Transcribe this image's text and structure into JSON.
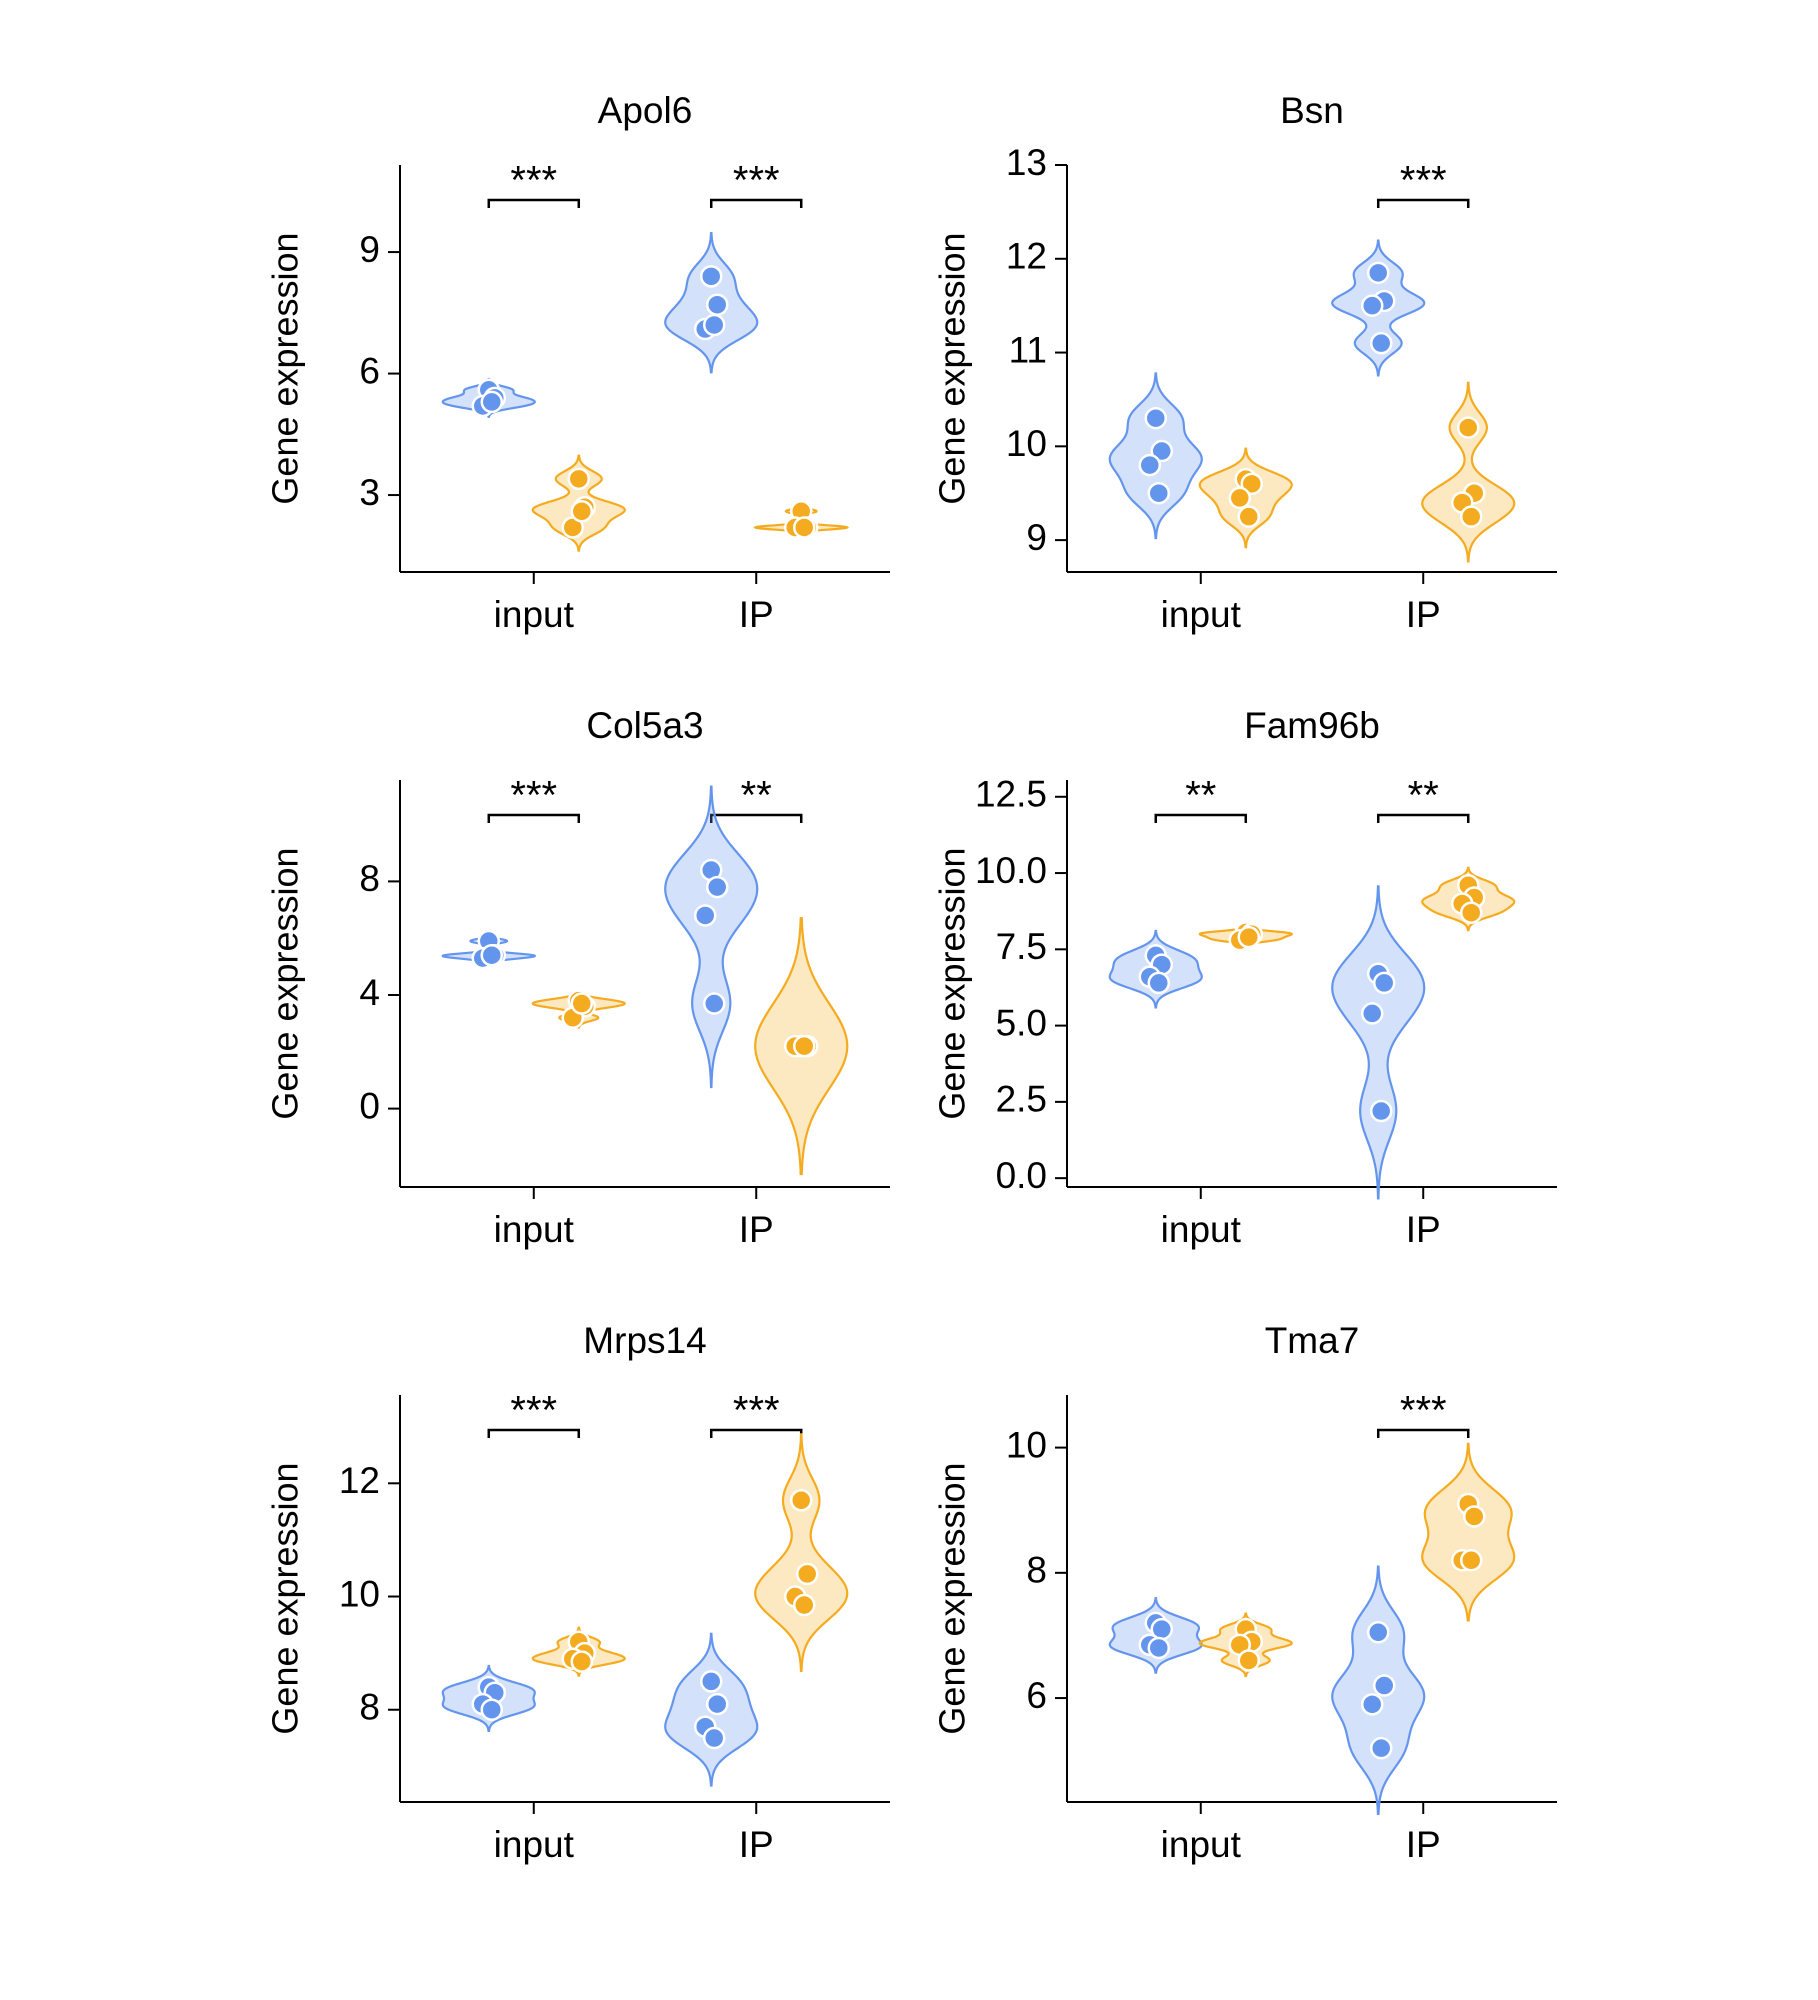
{
  "chart_data": [
    {
      "type": "violin",
      "title": "Apol6",
      "ylabel": "Gene expression",
      "categories": [
        "input",
        "IP"
      ],
      "series": [
        {
          "color": "#6495ED",
          "values": [
            [
              5.6,
              5.4,
              5.2,
              5.3
            ],
            [
              8.4,
              7.7,
              7.1,
              7.2
            ]
          ]
        },
        {
          "color": "#F5AB1F",
          "values": [
            [
              3.4,
              2.7,
              2.2,
              2.6
            ],
            [
              2.6,
              2.2,
              2.2,
              2.2
            ]
          ]
        }
      ],
      "significance": [
        "***",
        "***"
      ],
      "ylim": [
        1.1,
        11.15
      ],
      "yticks": [
        3,
        6,
        9
      ]
    },
    {
      "type": "violin",
      "title": "Bsn",
      "ylabel": "Gene expression",
      "categories": [
        "input",
        "IP"
      ],
      "series": [
        {
          "color": "#6495ED",
          "values": [
            [
              10.3,
              9.95,
              9.8,
              9.5
            ],
            [
              11.85,
              11.55,
              11.5,
              11.1
            ]
          ]
        },
        {
          "color": "#F5AB1F",
          "values": [
            [
              9.65,
              9.6,
              9.45,
              9.25
            ],
            [
              10.2,
              9.5,
              9.4,
              9.25
            ]
          ]
        }
      ],
      "significance": [
        null,
        "***"
      ],
      "ylim": [
        8.66,
        13.0
      ],
      "yticks": [
        9,
        10,
        11,
        12,
        13
      ]
    },
    {
      "type": "violin",
      "title": "Col5a3",
      "ylabel": "Gene expression",
      "categories": [
        "input",
        "IP"
      ],
      "series": [
        {
          "color": "#6495ED",
          "values": [
            [
              5.9,
              5.4,
              5.3,
              5.4
            ],
            [
              8.4,
              7.8,
              6.8,
              3.7
            ]
          ]
        },
        {
          "color": "#F5AB1F",
          "values": [
            [
              3.8,
              3.6,
              3.2,
              3.7
            ],
            [
              2.2,
              2.2,
              2.2,
              2.2
            ]
          ]
        }
      ],
      "significance": [
        "***",
        "**"
      ],
      "ylim": [
        -2.76,
        11.57
      ],
      "yticks": [
        0,
        4,
        8
      ]
    },
    {
      "type": "violin",
      "title": "Fam96b",
      "ylabel": "Gene expression",
      "categories": [
        "input",
        "IP"
      ],
      "series": [
        {
          "color": "#6495ED",
          "values": [
            [
              7.3,
              7.0,
              6.6,
              6.4
            ],
            [
              6.7,
              6.4,
              5.4,
              2.2
            ]
          ]
        },
        {
          "color": "#F5AB1F",
          "values": [
            [
              8.05,
              8.0,
              7.8,
              7.9
            ],
            [
              9.6,
              9.2,
              9.0,
              8.7
            ]
          ]
        }
      ],
      "significance": [
        "**",
        "**"
      ],
      "ylim": [
        -0.29,
        13.05
      ],
      "yticks": [
        {
          "value": 0,
          "label": "0.0"
        },
        2.5,
        {
          "value": 5,
          "label": "5.0"
        },
        7.5,
        {
          "value": 10,
          "label": "10.0"
        },
        12.5
      ]
    },
    {
      "type": "violin",
      "title": "Mrps14",
      "ylabel": "Gene expression",
      "categories": [
        "input",
        "IP"
      ],
      "series": [
        {
          "color": "#6495ED",
          "values": [
            [
              8.4,
              8.3,
              8.1,
              8.0
            ],
            [
              8.5,
              8.1,
              7.7,
              7.5
            ]
          ]
        },
        {
          "color": "#F5AB1F",
          "values": [
            [
              9.2,
              9.0,
              8.9,
              8.85
            ],
            [
              11.7,
              10.4,
              10.0,
              9.85
            ]
          ]
        }
      ],
      "significance": [
        "***",
        "***"
      ],
      "ylim": [
        6.37,
        13.56
      ],
      "yticks": [
        8,
        10,
        12
      ]
    },
    {
      "type": "violin",
      "title": "Tma7",
      "ylabel": "Gene expression",
      "categories": [
        "input",
        "IP"
      ],
      "series": [
        {
          "color": "#6495ED",
          "values": [
            [
              7.2,
              7.1,
              6.85,
              6.8
            ],
            [
              7.05,
              6.2,
              5.9,
              5.2
            ]
          ]
        },
        {
          "color": "#F5AB1F",
          "values": [
            [
              7.1,
              6.9,
              6.85,
              6.6
            ],
            [
              9.1,
              8.9,
              8.2,
              8.2
            ]
          ]
        }
      ],
      "significance": [
        null,
        "***"
      ],
      "ylim": [
        4.34,
        10.84
      ],
      "yticks": [
        6,
        8,
        10
      ]
    }
  ]
}
